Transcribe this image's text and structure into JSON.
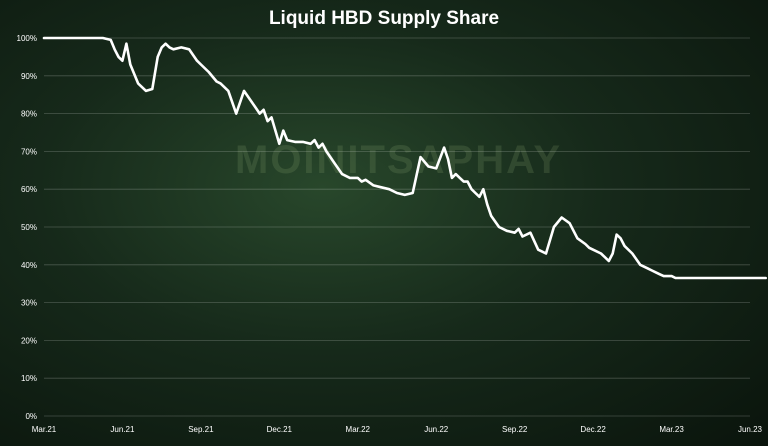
{
  "watermark": "MOINITSAPHAY",
  "colors": {
    "line": "#ffffff",
    "grid": "rgba(255,255,255,0.22)",
    "text": "#ffffff"
  },
  "chart_data": {
    "type": "line",
    "title": "Liquid HBD Supply Share",
    "xlabel": "",
    "ylabel": "",
    "ylim": [
      0,
      100
    ],
    "grid": true,
    "y_ticks": [
      0,
      10,
      20,
      30,
      40,
      50,
      60,
      70,
      80,
      90,
      100
    ],
    "y_tick_labels": [
      "0%",
      "10%",
      "20%",
      "30%",
      "40%",
      "50%",
      "60%",
      "70%",
      "80%",
      "90%",
      "100%"
    ],
    "x_tick_labels": [
      "Mar.21",
      "Jun.21",
      "Sep.21",
      "Dec.21",
      "Mar.22",
      "Jun.22",
      "Sep.22",
      "Dec.22",
      "Mar.23",
      "Jun.23"
    ],
    "series": [
      {
        "x": [
          0,
          0.3,
          0.6,
          0.75,
          0.85,
          0.9,
          0.95,
          1.0,
          1.05,
          1.1,
          1.2,
          1.3,
          1.38,
          1.45,
          1.5,
          1.55,
          1.6,
          1.65,
          1.75,
          1.85,
          1.95,
          2.0,
          2.1,
          2.2,
          2.25,
          2.35,
          2.45,
          2.55,
          2.65,
          2.7,
          2.75,
          2.8,
          2.85,
          2.9,
          3.0,
          3.05,
          3.1,
          3.2,
          3.3,
          3.4,
          3.45,
          3.5,
          3.55,
          3.6,
          3.7,
          3.8,
          3.9,
          4.0,
          4.05,
          4.1,
          4.2,
          4.3,
          4.4,
          4.5,
          4.6,
          4.7,
          4.8,
          4.9,
          5.0,
          5.1,
          5.15,
          5.2,
          5.25,
          5.3,
          5.35,
          5.4,
          5.45,
          5.5,
          5.55,
          5.6,
          5.65,
          5.7,
          5.8,
          5.9,
          6.0,
          6.05,
          6.1,
          6.2,
          6.3,
          6.35,
          6.4,
          6.5,
          6.6,
          6.7,
          6.8,
          6.9,
          6.95,
          7.0,
          7.1,
          7.15,
          7.2,
          7.25,
          7.3,
          7.35,
          7.4,
          7.5,
          7.6,
          7.7,
          7.75,
          7.8,
          7.85,
          7.9,
          8.0,
          8.05,
          8.1,
          8.2,
          8.3,
          8.4,
          8.5,
          8.6,
          8.7,
          8.8,
          8.9,
          9.0,
          9.1,
          9.2
        ],
        "y": [
          100,
          100,
          100,
          100,
          99.5,
          97,
          95,
          94,
          98.5,
          93,
          88,
          86,
          86.5,
          95,
          97.5,
          98.5,
          97.5,
          97,
          97.5,
          97,
          94,
          93,
          91,
          88.5,
          88,
          86,
          80,
          86,
          83,
          81.5,
          80,
          81,
          78,
          79,
          72,
          75.5,
          73,
          72.5,
          72.5,
          72,
          73,
          71,
          72,
          70,
          67,
          64,
          63,
          63,
          62,
          62.5,
          61,
          60.5,
          60,
          59,
          58.5,
          59,
          68.5,
          66,
          65.5,
          71,
          68,
          63,
          64,
          63,
          62,
          62,
          60,
          59,
          58,
          60,
          56,
          53,
          50,
          49,
          48.5,
          49.5,
          47.5,
          48.5,
          44,
          43.5,
          43,
          50,
          52.5,
          51,
          47,
          45.5,
          44.5,
          44,
          43,
          42,
          41,
          43,
          48,
          47,
          45,
          43,
          40,
          39,
          38.5,
          38,
          37.5,
          37,
          37,
          36.5,
          36.5,
          36.5,
          36.5,
          36.5,
          36.5,
          36.5,
          36.5,
          36.5,
          36.5,
          36.5,
          36.5,
          36.5
        ]
      }
    ]
  }
}
